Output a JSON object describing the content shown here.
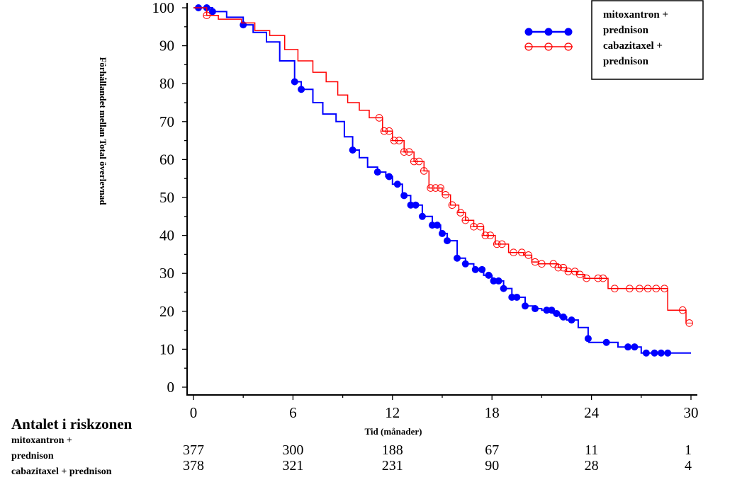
{
  "chart_data": {
    "type": "line",
    "subtype": "kaplan-meier",
    "title": "",
    "xlabel": "Tid (månader)",
    "ylabel": "Förhållandet mellan Total överlevnad",
    "xlim": [
      0,
      30
    ],
    "ylim": [
      0,
      100
    ],
    "x_ticks": [
      0,
      6,
      12,
      18,
      24,
      30
    ],
    "y_ticks": [
      0,
      10,
      20,
      30,
      40,
      50,
      60,
      70,
      80,
      90,
      100
    ],
    "grid": false,
    "legend": {
      "placement": "top-right",
      "entries": [
        "mitoxantron + prednison",
        "cabazitaxel + prednison"
      ],
      "box_lines": [
        "mitoxantron +",
        "prednison",
        "cabazitaxel +",
        "prednison"
      ]
    },
    "series": [
      {
        "name": "mitoxantron + prednison",
        "color": "#0000ff",
        "marker": "filled-circle",
        "points": [
          [
            0,
            100
          ],
          [
            1.15,
            99
          ],
          [
            2,
            97.5
          ],
          [
            3,
            95.5
          ],
          [
            3.6,
            93.5
          ],
          [
            4.4,
            91
          ],
          [
            5.2,
            86
          ],
          [
            6.1,
            80.5
          ],
          [
            6.5,
            78.5
          ],
          [
            7.2,
            75
          ],
          [
            7.8,
            72
          ],
          [
            8.6,
            70
          ],
          [
            9.1,
            66
          ],
          [
            9.6,
            62.5
          ],
          [
            10,
            60.5
          ],
          [
            10.5,
            58
          ],
          [
            11.1,
            56.7
          ],
          [
            11.6,
            55.5
          ],
          [
            12,
            53.5
          ],
          [
            12.6,
            50.5
          ],
          [
            13.1,
            48
          ],
          [
            13.8,
            45
          ],
          [
            14.4,
            42.7
          ],
          [
            14.9,
            40.5
          ],
          [
            15.3,
            38.6
          ],
          [
            15.9,
            34
          ],
          [
            16.4,
            32.5
          ],
          [
            16.9,
            31
          ],
          [
            17.5,
            29.5
          ],
          [
            18,
            28
          ],
          [
            18.7,
            26
          ],
          [
            19.2,
            23.7
          ],
          [
            20,
            21.4
          ],
          [
            20.5,
            20.7
          ],
          [
            21,
            20.3
          ],
          [
            21.7,
            19.4
          ],
          [
            22.1,
            18.5
          ],
          [
            22.5,
            17.7
          ],
          [
            23.2,
            15.7
          ],
          [
            23.8,
            12.8
          ],
          [
            23.85,
            11.8
          ],
          [
            24.9,
            11.8
          ],
          [
            25.6,
            10.6
          ],
          [
            26.7,
            10.6
          ],
          [
            27,
            9
          ],
          [
            30,
            9
          ]
        ],
        "censored": [
          0.3,
          0.8,
          1.15,
          3,
          6.1,
          6.5,
          9.6,
          11.1,
          11.8,
          12.3,
          12.7,
          13.1,
          13.4,
          13.8,
          14.4,
          14.7,
          15.0,
          15.3,
          15.9,
          16.4,
          17.0,
          17.4,
          17.8,
          18.1,
          18.4,
          18.7,
          19.2,
          19.5,
          20.0,
          20.6,
          21.3,
          21.6,
          21.9,
          22.3,
          22.8,
          23.8,
          24.9,
          26.2,
          26.6,
          27.3,
          27.8,
          28.2,
          28.6
        ]
      },
      {
        "name": "cabazitaxel + prednison",
        "color": "#ff0000",
        "marker": "open-circle",
        "points": [
          [
            0,
            100
          ],
          [
            0.8,
            98
          ],
          [
            1.5,
            97
          ],
          [
            2.9,
            96
          ],
          [
            3.7,
            94
          ],
          [
            4.6,
            92.7
          ],
          [
            5.5,
            89
          ],
          [
            6.3,
            86
          ],
          [
            7.2,
            83
          ],
          [
            8,
            80.5
          ],
          [
            8.7,
            77
          ],
          [
            9.3,
            75
          ],
          [
            10,
            73
          ],
          [
            10.6,
            71
          ],
          [
            11.4,
            67.5
          ],
          [
            12,
            65
          ],
          [
            12.7,
            62
          ],
          [
            13.3,
            59.5
          ],
          [
            13.9,
            57
          ],
          [
            14.2,
            52.5
          ],
          [
            15,
            50.7
          ],
          [
            15.5,
            48
          ],
          [
            16,
            46
          ],
          [
            16.4,
            44
          ],
          [
            16.9,
            42.3
          ],
          [
            17.5,
            40
          ],
          [
            18.2,
            37.7
          ],
          [
            19,
            35.5
          ],
          [
            19.9,
            34.8
          ],
          [
            20.4,
            33
          ],
          [
            20.8,
            32.5
          ],
          [
            22,
            31.5
          ],
          [
            22.5,
            30.5
          ],
          [
            23.1,
            29.7
          ],
          [
            23.6,
            28.7
          ],
          [
            24.8,
            28.7
          ],
          [
            25,
            26
          ],
          [
            28.5,
            26
          ],
          [
            28.6,
            20.3
          ],
          [
            29.4,
            20.3
          ],
          [
            29.7,
            16.9
          ]
        ],
        "censored": [
          0.8,
          11.2,
          11.5,
          11.8,
          12.1,
          12.4,
          12.7,
          13.0,
          13.3,
          13.6,
          13.9,
          14.3,
          14.6,
          14.9,
          15.2,
          15.6,
          16.1,
          16.4,
          16.9,
          17.3,
          17.6,
          17.9,
          18.3,
          18.6,
          19.3,
          19.8,
          20.2,
          20.6,
          21.0,
          21.7,
          22.0,
          22.3,
          22.6,
          23.0,
          23.3,
          23.7,
          24.4,
          24.7,
          25.4,
          26.3,
          26.9,
          27.4,
          27.9,
          28.4,
          29.5,
          29.9
        ]
      }
    ],
    "risk_table": {
      "title": "Antalet i riskzonen",
      "times": [
        0,
        6,
        12,
        18,
        24,
        30
      ],
      "rows": [
        {
          "name_lines": [
            "mitoxantron +",
            "prednison"
          ],
          "counts": [
            "377",
            "300",
            "188",
            "67",
            "11",
            "1"
          ]
        },
        {
          "name_lines": [
            "cabazitaxel + prednison"
          ],
          "counts": [
            "378",
            "321",
            "231",
            "90",
            "28",
            "4"
          ]
        }
      ]
    }
  }
}
